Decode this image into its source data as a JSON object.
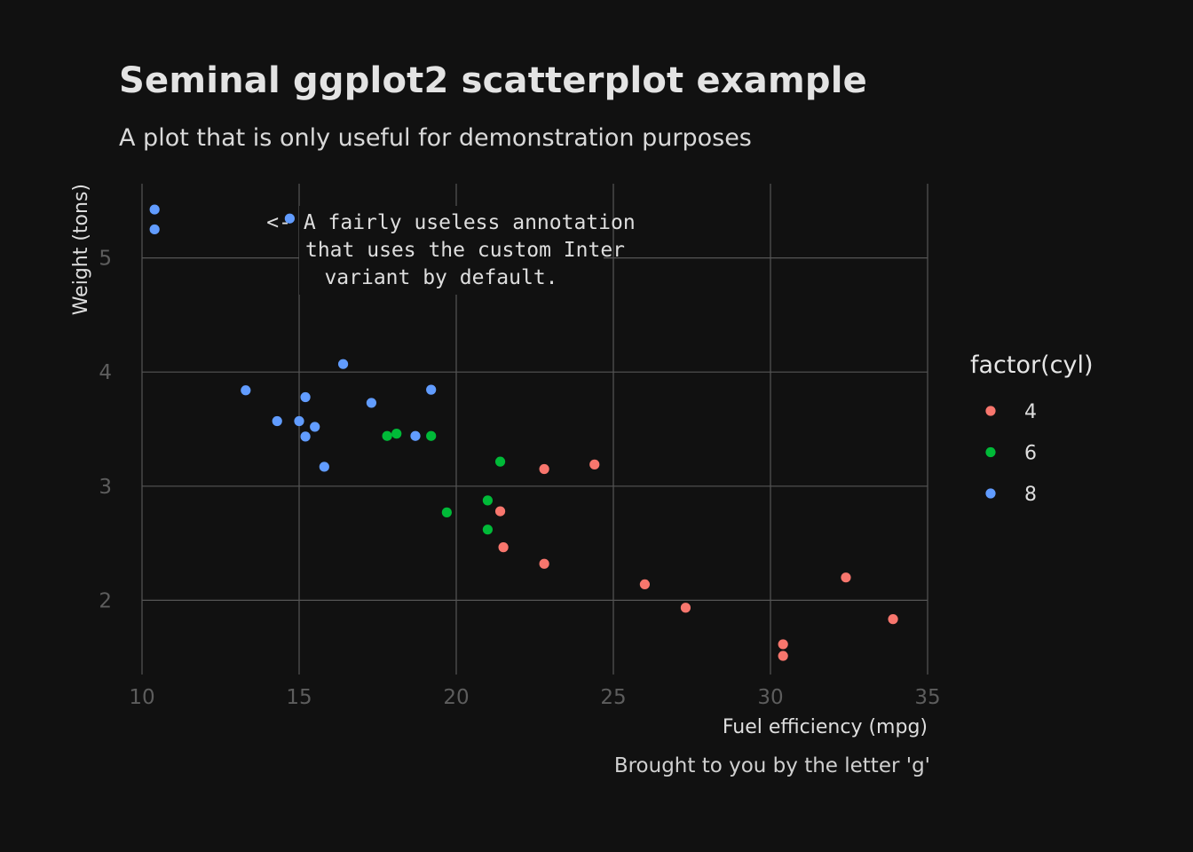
{
  "chart_data": {
    "type": "scatter",
    "title": "Seminal ggplot2 scatterplot example",
    "subtitle": "A plot that is only useful for demonstration purposes",
    "caption": "Brought to you by the letter 'g'",
    "xlabel": "Fuel efficiency (mpg)",
    "ylabel": "Weight (tons)",
    "xlim": [
      10,
      35
    ],
    "ylim": [
      1.35,
      5.65
    ],
    "x_ticks": [
      10,
      15,
      20,
      25,
      30,
      35
    ],
    "y_ticks": [
      2,
      3,
      4,
      5
    ],
    "grid": true,
    "legend": {
      "title": "factor(cyl)",
      "position": "right",
      "entries": [
        "4",
        "6",
        "8"
      ]
    },
    "series": [
      {
        "name": "4",
        "color": "#F8766D",
        "points": [
          {
            "x": 22.8,
            "y": 2.32
          },
          {
            "x": 24.4,
            "y": 3.19
          },
          {
            "x": 22.8,
            "y": 3.15
          },
          {
            "x": 32.4,
            "y": 2.2
          },
          {
            "x": 30.4,
            "y": 1.615
          },
          {
            "x": 33.9,
            "y": 1.835
          },
          {
            "x": 21.5,
            "y": 2.465
          },
          {
            "x": 27.3,
            "y": 1.935
          },
          {
            "x": 26.0,
            "y": 2.14
          },
          {
            "x": 30.4,
            "y": 1.513
          },
          {
            "x": 21.4,
            "y": 2.78
          }
        ]
      },
      {
        "name": "6",
        "color": "#00BA38",
        "points": [
          {
            "x": 21.0,
            "y": 2.62
          },
          {
            "x": 21.0,
            "y": 2.875
          },
          {
            "x": 21.4,
            "y": 3.215
          },
          {
            "x": 18.1,
            "y": 3.46
          },
          {
            "x": 19.2,
            "y": 3.44
          },
          {
            "x": 17.8,
            "y": 3.44
          },
          {
            "x": 19.7,
            "y": 2.77
          }
        ]
      },
      {
        "name": "8",
        "color": "#619CFF",
        "points": [
          {
            "x": 18.7,
            "y": 3.44
          },
          {
            "x": 14.3,
            "y": 3.57
          },
          {
            "x": 16.4,
            "y": 4.07
          },
          {
            "x": 17.3,
            "y": 3.73
          },
          {
            "x": 15.2,
            "y": 3.78
          },
          {
            "x": 10.4,
            "y": 5.25
          },
          {
            "x": 10.4,
            "y": 5.424
          },
          {
            "x": 14.7,
            "y": 5.345
          },
          {
            "x": 15.5,
            "y": 3.52
          },
          {
            "x": 15.2,
            "y": 3.435
          },
          {
            "x": 13.3,
            "y": 3.84
          },
          {
            "x": 19.2,
            "y": 3.845
          },
          {
            "x": 15.8,
            "y": 3.17
          },
          {
            "x": 15.0,
            "y": 3.57
          }
        ]
      }
    ],
    "annotation": {
      "lines": [
        "<- A fairly useless annotation",
        "that uses the custom Inter",
        "variant by default."
      ],
      "anchor": {
        "x": 15.0,
        "y": 5.345
      }
    }
  }
}
